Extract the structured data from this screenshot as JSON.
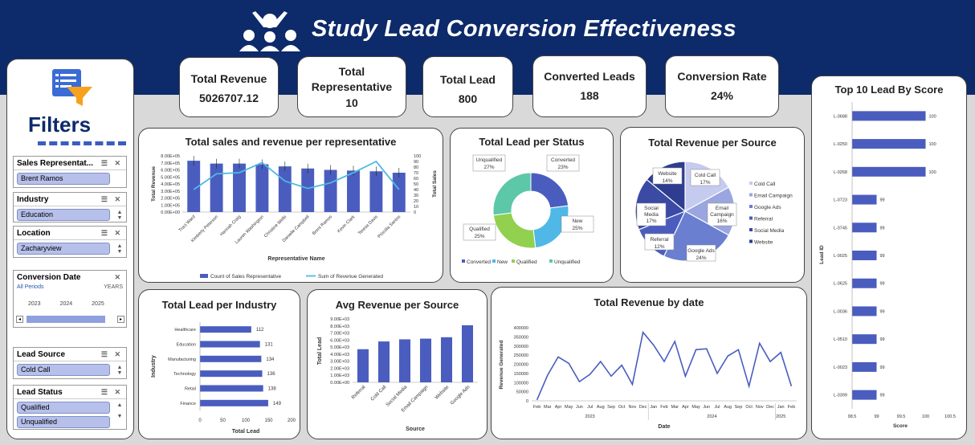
{
  "header": {
    "title": "Study Lead Conversion Effectiveness"
  },
  "filters": {
    "title": "Filters",
    "slicers": [
      {
        "label": "Sales Representat...",
        "items": [
          "Brent Ramos"
        ]
      },
      {
        "label": "Industry",
        "items": [
          "Education"
        ]
      },
      {
        "label": "Location",
        "items": [
          "Zacharyview"
        ]
      },
      {
        "label": "Lead Source",
        "items": [
          "Cold Call"
        ]
      },
      {
        "label": "Lead Status",
        "items": [
          "Qualified",
          "Unqualified"
        ]
      }
    ],
    "timeline": {
      "label": "Conversion Date",
      "periods": "All Periods",
      "unit": "YEARS",
      "years": [
        "2023",
        "2024",
        "2025"
      ]
    }
  },
  "kpis": [
    {
      "label": "Total Revenue",
      "value": "5026707.12"
    },
    {
      "label": "Total Representative",
      "value": "10"
    },
    {
      "label": "Total Lead",
      "value": "800"
    },
    {
      "label": "Converted Leads",
      "value": "188"
    },
    {
      "label": "Conversion Rate",
      "value": "24%"
    }
  ],
  "colors": {
    "header": "#0d2a6a",
    "bar": "#4a5dbf",
    "line": "#4fb8e6",
    "green": "#92d050",
    "teal": "#5cc8a8",
    "blue2": "#5b9bd5"
  },
  "chart_data": [
    {
      "id": "sales_rep",
      "type": "bar",
      "title": "Total sales and revenue per representative",
      "xlabel": "Representative Name",
      "ylabel": "Total Revenue",
      "y2label": "Total Sales",
      "categories": [
        "Traci Ward",
        "Kimberly Peterson",
        "Hannah Craig",
        "Lauren Washington",
        "Christine Wells",
        "Danielle Campbell",
        "Brent Ramos",
        "Kevin Clark",
        "Teresa Davis",
        "Priscilla Santos"
      ],
      "yticks": [
        "0.00E+00",
        "1.00E+05",
        "2.00E+05",
        "3.00E+05",
        "4.00E+05",
        "5.00E+05",
        "6.00E+05",
        "7.00E+05",
        "8.00E+05"
      ],
      "y2ticks": [
        "0",
        "10",
        "20",
        "30",
        "40",
        "50",
        "60",
        "70",
        "80",
        "90",
        "100"
      ],
      "ylim": [
        0,
        800000
      ],
      "y2lim": [
        0,
        100
      ],
      "series": [
        {
          "name": "Count of Sales Representative",
          "values": [
            730000,
            690000,
            690000,
            680000,
            650000,
            620000,
            600000,
            590000,
            580000,
            560000
          ]
        },
        {
          "name": "Sum of Revenue Generated",
          "values": [
            40,
            68,
            70,
            88,
            55,
            42,
            52,
            70,
            90,
            40
          ]
        }
      ]
    },
    {
      "id": "lead_status",
      "type": "pie",
      "title": "Total Lead per Status",
      "labels": [
        "Converted",
        "New",
        "Qualified",
        "Unqualified"
      ],
      "values": [
        23,
        25,
        25,
        27
      ],
      "display": [
        "23%",
        "25%",
        "25%",
        "27%"
      ]
    },
    {
      "id": "rev_source",
      "type": "pie",
      "title": "Total Revenue per Source",
      "labels": [
        "Cold Call",
        "Email Campaign",
        "Google Ads",
        "Referral",
        "Social Media",
        "Website"
      ],
      "values": [
        17,
        16,
        24,
        12,
        17,
        14
      ],
      "display": [
        "17%",
        "16%",
        "24%",
        "12%",
        "17%",
        "14%"
      ]
    },
    {
      "id": "industry",
      "type": "bar",
      "title": "Total Lead per Industry",
      "xlabel": "Total Lead",
      "ylabel": "Industry",
      "categories": [
        "Healthcare",
        "Education",
        "Manufacturing",
        "Technology",
        "Retail",
        "Finance"
      ],
      "values": [
        112,
        131,
        134,
        136,
        138,
        149
      ],
      "xticks": [
        "0",
        "50",
        "100",
        "150",
        "200"
      ],
      "xlim": [
        0,
        200
      ]
    },
    {
      "id": "avg_rev_source",
      "type": "bar",
      "title": "Avg Revenue per Source",
      "xlabel": "Source",
      "ylabel": "Total Lead",
      "categories": [
        "Referral",
        "Cold Call",
        "Social Media",
        "Email Campaign",
        "Website",
        "Google Ads"
      ],
      "values": [
        4700,
        5800,
        6100,
        6200,
        6400,
        8100
      ],
      "yticks": [
        "0.00E+00",
        "1.00E+03",
        "2.00E+03",
        "3.00E+03",
        "4.00E+03",
        "5.00E+03",
        "6.00E+03",
        "7.00E+03",
        "8.00E+03",
        "9.00E+03"
      ],
      "ylim": [
        0,
        9000
      ]
    },
    {
      "id": "rev_date",
      "type": "line",
      "title": "Total Revenue by date",
      "xlabel": "Date",
      "ylabel": "Revenue Generated",
      "x": [
        "Feb 2023",
        "Mar 2023",
        "Apr 2023",
        "May 2023",
        "Jun 2023",
        "Jul 2023",
        "Aug 2023",
        "Sep 2023",
        "Oct 2023",
        "Nov 2023",
        "Dec 2023",
        "Jan 2024",
        "Feb 2024",
        "Mar 2024",
        "Apr 2024",
        "May 2024",
        "Jun 2024",
        "Jul 2024",
        "Aug 2024",
        "Sep 2024",
        "Oct 2024",
        "Nov 2024",
        "Dec 2024",
        "Jan 2025",
        "Feb 2025"
      ],
      "months": [
        "Feb",
        "Mar",
        "Apr",
        "May",
        "Jun",
        "Jul",
        "Aug",
        "Sep",
        "Oct",
        "Nov",
        "Dec",
        "Jan",
        "Feb",
        "Mar",
        "Apr",
        "May",
        "Jun",
        "Jul",
        "Aug",
        "Sep",
        "Oct",
        "Nov",
        "Dec",
        "Jan",
        "Feb"
      ],
      "years": [
        "2023",
        "2024",
        "2025"
      ],
      "values": [
        5000,
        140000,
        240000,
        205000,
        105000,
        145000,
        215000,
        135000,
        195000,
        90000,
        375000,
        305000,
        215000,
        325000,
        135000,
        280000,
        285000,
        150000,
        245000,
        280000,
        80000,
        315000,
        215000,
        265000,
        80000
      ],
      "yticks": [
        "0",
        "50000",
        "100000",
        "150000",
        "200000",
        "250000",
        "300000",
        "350000",
        "400000"
      ],
      "ylim": [
        0,
        400000
      ]
    },
    {
      "id": "top10",
      "type": "bar",
      "title": "Top 10 Lead By Score",
      "xlabel": "Score",
      "ylabel": "Lead ID",
      "categories": [
        "L-0688",
        "L-0250",
        "L-0268",
        "L-0723",
        "L-0745",
        "L-0025",
        "L-0625",
        "L-0036",
        "L-0510",
        "L-0023",
        "L-0399"
      ],
      "values": [
        100,
        100,
        100,
        99,
        99,
        99,
        99,
        99,
        99,
        99,
        99
      ],
      "xticks": [
        "98.5",
        "99",
        "99.5",
        "100",
        "100.5"
      ],
      "xlim": [
        98.5,
        100.5
      ]
    }
  ]
}
